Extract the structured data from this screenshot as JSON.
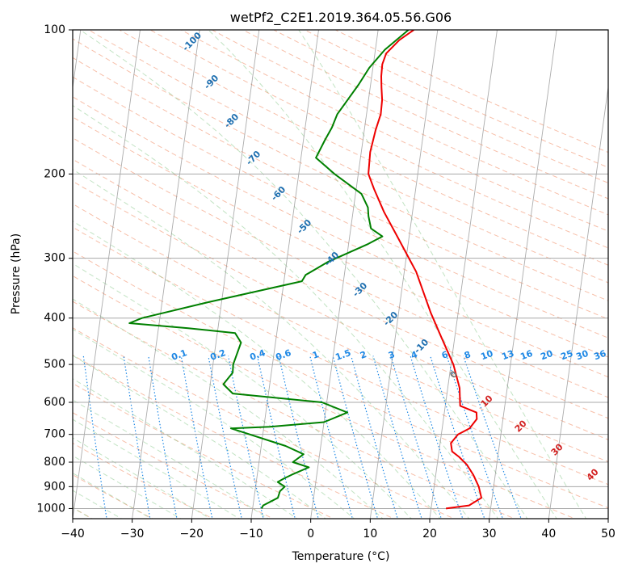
{
  "chart_data": {
    "type": "line",
    "title": "wetPf2_C2E1.2019.364.05.56.G06",
    "xlabel": "Temperature (°C)",
    "ylabel": "Pressure (hPa)",
    "xlim": [
      -40,
      50
    ],
    "ylim": [
      1050,
      100
    ],
    "y_scale": "log",
    "grid": true,
    "x_ticks": [
      -40,
      -30,
      -20,
      -10,
      0,
      10,
      20,
      30,
      40,
      50
    ],
    "y_ticks": [
      1000,
      900,
      800,
      700,
      600,
      500,
      400,
      300,
      200,
      100
    ],
    "series": [
      {
        "name": "",
        "color": "#ee0000",
        "x": [
          22.5,
          26.3,
          28.2,
          27.5,
          26.3,
          25.0,
          23.5,
          22.2,
          21.8,
          22.8,
          24.6,
          25.6,
          25.4,
          22.5,
          22.3,
          22.0,
          20.4,
          17.8,
          15.4,
          12.0,
          8.0,
          5.2,
          3.0,
          1.7,
          1.5,
          1.9,
          2.4,
          2.3,
          1.9,
          1.6,
          1.5,
          1.9,
          3.8,
          6.0
        ],
        "y": [
          1000,
          985,
          950,
          900,
          850,
          810,
          780,
          760,
          730,
          700,
          680,
          650,
          630,
          610,
          590,
          560,
          500,
          440,
          390,
          320,
          270,
          240,
          215,
          200,
          180,
          162,
          150,
          140,
          132,
          125,
          118,
          112,
          105,
          100
        ]
      },
      {
        "name": "",
        "color": "#008000",
        "x": [
          -8.5,
          -8.3,
          -6.0,
          -5.8,
          -5.1,
          -6.4,
          -5.4,
          -4.2,
          -1.5,
          -4.3,
          -2.7,
          -5.9,
          -15.5,
          -9.0,
          0.0,
          3.7,
          -0.8,
          -16.0,
          -17.8,
          -16.5,
          -16.6,
          -15.8,
          -17.0,
          -25.0,
          -35.0,
          -33.0,
          -22.0,
          -7.0,
          -6.5,
          -3.0,
          3.3,
          5.5,
          3.4,
          2.7,
          2.4,
          1.0,
          -4.0,
          -7.5,
          -6.4,
          -5.5,
          -4.9,
          -3.5,
          -2.0,
          -0.6,
          1.6,
          5.1
        ],
        "y": [
          1000,
          985,
          950,
          920,
          900,
          880,
          865,
          850,
          820,
          800,
          770,
          740,
          680,
          675,
          660,
          630,
          600,
          575,
          550,
          520,
          500,
          450,
          430,
          420,
          410,
          400,
          370,
          335,
          325,
          305,
          280,
          270,
          260,
          245,
          235,
          220,
          200,
          185,
          170,
          160,
          150,
          140,
          130,
          120,
          110,
          100
        ]
      }
    ],
    "dry_adiabat_labels": [
      "-100",
      "-90",
      "-80",
      "-70",
      "-60",
      "-50",
      "-40",
      "-30",
      "-20",
      "-10",
      "0",
      "10",
      "20",
      "30",
      "40"
    ],
    "mixing_ratio_labels": [
      "0.1",
      "0.2",
      "0.4",
      "0.6",
      "1",
      "1.5",
      "2",
      "3",
      "4",
      "6",
      "8",
      "10",
      "13",
      "16",
      "20",
      "25",
      "30",
      "36"
    ],
    "colors": {
      "temperature": "#ee0000",
      "dewpoint": "#008000",
      "dry_adiabat": "#f08a63",
      "moist_adiabat": "#78c27a",
      "mixing_ratio": "#1e88e5",
      "isotherm": "#808080",
      "label_blue": "#1e6fb0",
      "label_red": "#d22020",
      "label_gray": "#777777"
    }
  }
}
